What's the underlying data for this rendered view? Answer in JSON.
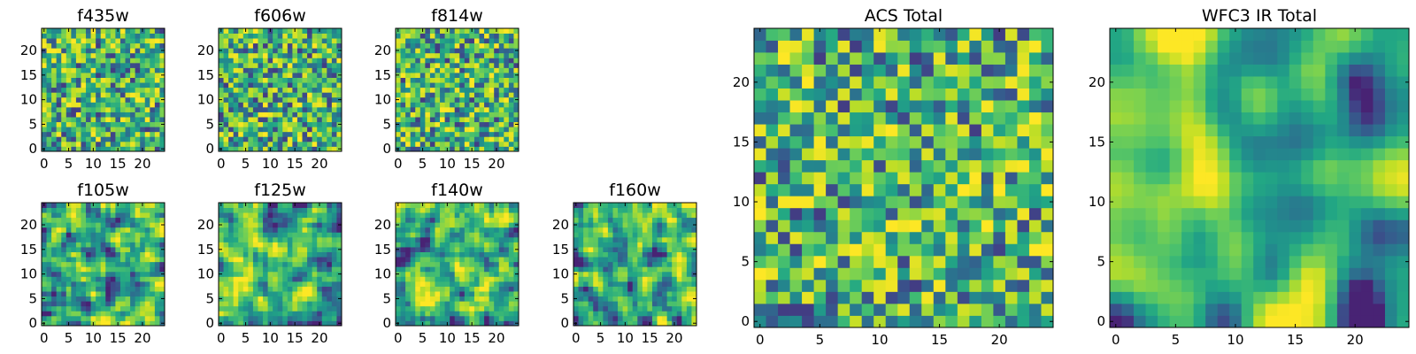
{
  "chart_data": [
    {
      "type": "heatmap",
      "title": "f435w",
      "x_ticks": [
        0,
        5,
        10,
        15,
        20
      ],
      "y_ticks": [
        0,
        5,
        10,
        15,
        20
      ],
      "grid_size": 25,
      "xlim": [
        -0.5,
        24.5
      ],
      "ylim": [
        -0.5,
        24.5
      ],
      "colormap": "viridis",
      "texture": "noisy",
      "seed": 11
    },
    {
      "type": "heatmap",
      "title": "f606w",
      "x_ticks": [
        0,
        5,
        10,
        15,
        20
      ],
      "y_ticks": [
        0,
        5,
        10,
        15,
        20
      ],
      "grid_size": 25,
      "xlim": [
        -0.5,
        24.5
      ],
      "ylim": [
        -0.5,
        24.5
      ],
      "colormap": "viridis",
      "texture": "noisy",
      "seed": 23
    },
    {
      "type": "heatmap",
      "title": "f814w",
      "x_ticks": [
        0,
        5,
        10,
        15,
        20
      ],
      "y_ticks": [
        0,
        5,
        10,
        15,
        20
      ],
      "grid_size": 25,
      "xlim": [
        -0.5,
        24.5
      ],
      "ylim": [
        -0.5,
        24.5
      ],
      "colormap": "viridis",
      "texture": "noisy",
      "seed": 37
    },
    {
      "type": "heatmap",
      "title": "f105w",
      "x_ticks": [
        0,
        5,
        10,
        15,
        20
      ],
      "y_ticks": [
        0,
        5,
        10,
        15,
        20
      ],
      "grid_size": 25,
      "xlim": [
        -0.5,
        24.5
      ],
      "ylim": [
        -0.5,
        24.5
      ],
      "colormap": "viridis",
      "texture": "smooth",
      "seed": 41
    },
    {
      "type": "heatmap",
      "title": "f125w",
      "x_ticks": [
        0,
        5,
        10,
        15,
        20
      ],
      "y_ticks": [
        0,
        5,
        10,
        15,
        20
      ],
      "grid_size": 25,
      "xlim": [
        -0.5,
        24.5
      ],
      "ylim": [
        -0.5,
        24.5
      ],
      "colormap": "viridis",
      "texture": "smooth",
      "seed": 53
    },
    {
      "type": "heatmap",
      "title": "f140w",
      "x_ticks": [
        0,
        5,
        10,
        15,
        20
      ],
      "y_ticks": [
        0,
        5,
        10,
        15,
        20
      ],
      "grid_size": 25,
      "xlim": [
        -0.5,
        24.5
      ],
      "ylim": [
        -0.5,
        24.5
      ],
      "colormap": "viridis",
      "texture": "smooth",
      "seed": 67
    },
    {
      "type": "heatmap",
      "title": "f160w",
      "x_ticks": [
        0,
        5,
        10,
        15,
        20
      ],
      "y_ticks": [
        0,
        5,
        10,
        15,
        20
      ],
      "grid_size": 25,
      "xlim": [
        -0.5,
        24.5
      ],
      "ylim": [
        -0.5,
        24.5
      ],
      "colormap": "viridis",
      "texture": "smooth",
      "seed": 79
    },
    {
      "type": "heatmap",
      "title": "ACS Total",
      "x_ticks": [
        0,
        5,
        10,
        15,
        20
      ],
      "y_ticks": [
        0,
        5,
        10,
        15,
        20
      ],
      "grid_size": 25,
      "xlim": [
        -0.5,
        24.5
      ],
      "ylim": [
        -0.5,
        24.5
      ],
      "colormap": "viridis",
      "texture": "noisy",
      "seed": 97
    },
    {
      "type": "heatmap",
      "title": "WFC3 IR Total",
      "x_ticks": [
        0,
        5,
        10,
        15,
        20
      ],
      "y_ticks": [
        0,
        5,
        10,
        15,
        20
      ],
      "grid_size": 25,
      "xlim": [
        -0.5,
        24.5
      ],
      "ylim": [
        -0.5,
        24.5
      ],
      "colormap": "viridis",
      "texture": "very-smooth",
      "seed": 131
    }
  ]
}
